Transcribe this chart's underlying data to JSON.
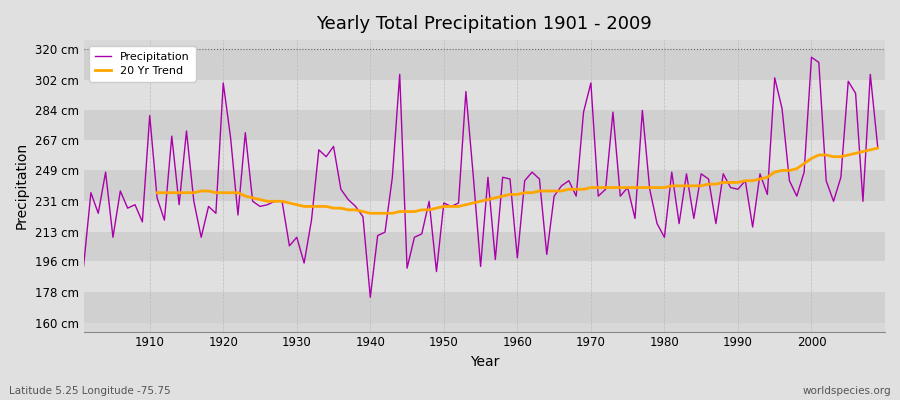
{
  "title": "Yearly Total Precipitation 1901 - 2009",
  "xlabel": "Year",
  "ylabel": "Precipitation",
  "subtitle": "Latitude 5.25 Longitude -75.75",
  "watermark": "worldspecies.org",
  "years": [
    1901,
    1902,
    1903,
    1904,
    1905,
    1906,
    1907,
    1908,
    1909,
    1910,
    1911,
    1912,
    1913,
    1914,
    1915,
    1916,
    1917,
    1918,
    1919,
    1920,
    1921,
    1922,
    1923,
    1924,
    1925,
    1926,
    1927,
    1928,
    1929,
    1930,
    1931,
    1932,
    1933,
    1934,
    1935,
    1936,
    1937,
    1938,
    1939,
    1940,
    1941,
    1942,
    1943,
    1944,
    1945,
    1946,
    1947,
    1948,
    1949,
    1950,
    1951,
    1952,
    1953,
    1954,
    1955,
    1956,
    1957,
    1958,
    1959,
    1960,
    1961,
    1962,
    1963,
    1964,
    1965,
    1966,
    1967,
    1968,
    1969,
    1970,
    1971,
    1972,
    1973,
    1974,
    1975,
    1976,
    1977,
    1978,
    1979,
    1980,
    1981,
    1982,
    1983,
    1984,
    1985,
    1986,
    1987,
    1988,
    1989,
    1990,
    1991,
    1992,
    1993,
    1994,
    1995,
    1996,
    1997,
    1998,
    1999,
    2000,
    2001,
    2002,
    2003,
    2004,
    2005,
    2006,
    2007,
    2008,
    2009
  ],
  "precip": [
    193,
    236,
    224,
    248,
    210,
    237,
    227,
    229,
    219,
    281,
    233,
    220,
    269,
    229,
    272,
    231,
    210,
    228,
    224,
    300,
    268,
    223,
    271,
    231,
    228,
    229,
    231,
    231,
    205,
    210,
    195,
    220,
    261,
    257,
    263,
    238,
    232,
    228,
    222,
    175,
    211,
    213,
    245,
    305,
    192,
    210,
    212,
    231,
    190,
    230,
    228,
    230,
    295,
    246,
    193,
    245,
    197,
    245,
    244,
    198,
    243,
    248,
    244,
    200,
    234,
    240,
    243,
    234,
    283,
    300,
    234,
    238,
    283,
    234,
    239,
    221,
    284,
    238,
    218,
    210,
    248,
    218,
    247,
    221,
    247,
    244,
    218,
    247,
    239,
    238,
    243,
    216,
    247,
    235,
    303,
    285,
    243,
    234,
    248,
    315,
    312,
    243,
    231,
    245,
    301,
    294,
    231,
    305,
    263
  ],
  "trend": [
    null,
    null,
    null,
    null,
    null,
    null,
    null,
    null,
    null,
    null,
    236,
    236,
    236,
    236,
    236,
    236,
    237,
    237,
    236,
    236,
    236,
    236,
    234,
    233,
    232,
    231,
    231,
    231,
    230,
    229,
    228,
    228,
    228,
    228,
    227,
    227,
    226,
    226,
    225,
    224,
    224,
    224,
    224,
    225,
    225,
    225,
    226,
    226,
    227,
    228,
    228,
    228,
    229,
    230,
    231,
    232,
    233,
    234,
    235,
    235,
    236,
    236,
    237,
    237,
    237,
    237,
    238,
    238,
    238,
    239,
    239,
    239,
    239,
    239,
    239,
    239,
    239,
    239,
    239,
    239,
    240,
    240,
    240,
    240,
    240,
    241,
    241,
    242,
    242,
    242,
    243,
    243,
    244,
    245,
    248,
    249,
    249,
    250,
    253,
    256,
    258,
    258,
    257,
    257,
    258,
    259,
    260,
    261,
    262
  ],
  "precip_color": "#AA00AA",
  "trend_color": "#FFA500",
  "bg_color": "#E0E0E0",
  "plot_bg_color": "#D8D8D8",
  "band_color_light": "#E0E0E0",
  "band_color_dark": "#D0D0D0",
  "grid_color": "#C8C8C8",
  "yticks": [
    160,
    178,
    196,
    213,
    231,
    249,
    267,
    284,
    302,
    320
  ],
  "ylim": [
    155,
    325
  ],
  "xlim": [
    1901,
    2010
  ],
  "xticks": [
    1910,
    1920,
    1930,
    1940,
    1950,
    1960,
    1970,
    1980,
    1990,
    2000
  ]
}
